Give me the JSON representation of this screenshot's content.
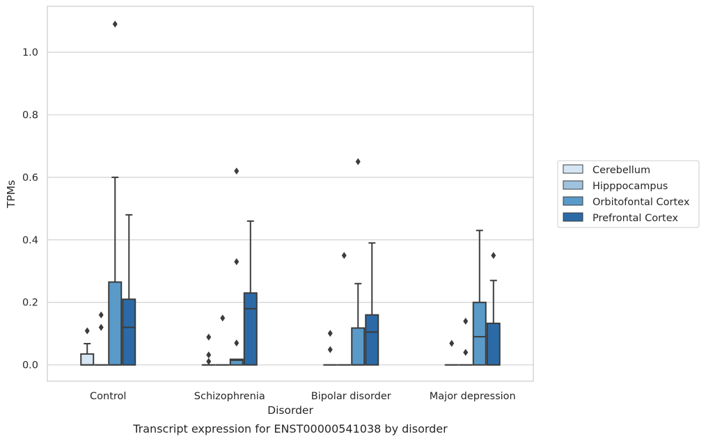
{
  "chart_data": {
    "type": "box",
    "caption": "Transcript expression for ENST00000541038 by disorder",
    "xlabel": "Disorder",
    "ylabel": "TPMs",
    "ylim": [
      -0.052,
      1.147
    ],
    "yticks": [
      "0.0",
      "0.2",
      "0.4",
      "0.6",
      "0.8",
      "1.0"
    ],
    "grid": "horizontal",
    "legend_position": "right-outside",
    "categories": [
      "Control",
      "Schizophrenia",
      "Bipolar disorder",
      "Major depression"
    ],
    "series": [
      {
        "name": "Cerebellum",
        "color": "#d5e5f3",
        "boxes": [
          {
            "q1": 0.0,
            "median": 0.0,
            "q3": 0.035,
            "whisker_low": 0.0,
            "whisker_high": 0.068,
            "outliers": [
              0.109
            ]
          },
          {
            "q1": 0.0,
            "median": 0.0,
            "q3": 0.0,
            "whisker_low": 0.0,
            "whisker_high": 0.0,
            "outliers": [
              0.011,
              0.032,
              0.089
            ]
          },
          {
            "q1": 0.0,
            "median": 0.0,
            "q3": 0.0,
            "whisker_low": 0.0,
            "whisker_high": 0.0,
            "outliers": [
              0.049,
              0.101
            ]
          },
          {
            "q1": 0.0,
            "median": 0.0,
            "q3": 0.0,
            "whisker_low": 0.0,
            "whisker_high": 0.0,
            "outliers": [
              0.069
            ]
          }
        ]
      },
      {
        "name": "Hipppocampus",
        "color": "#9fc3de",
        "boxes": [
          {
            "q1": 0.0,
            "median": 0.0,
            "q3": 0.0,
            "whisker_low": 0.0,
            "whisker_high": 0.0,
            "outliers": [
              0.12,
              0.16
            ]
          },
          {
            "q1": 0.0,
            "median": 0.0,
            "q3": 0.0,
            "whisker_low": 0.0,
            "whisker_high": 0.0,
            "outliers": [
              0.15
            ]
          },
          {
            "q1": 0.0,
            "median": 0.0,
            "q3": 0.0,
            "whisker_low": 0.0,
            "whisker_high": 0.0,
            "outliers": [
              0.35
            ]
          },
          {
            "q1": 0.0,
            "median": 0.0,
            "q3": 0.0,
            "whisker_low": 0.0,
            "whisker_high": 0.0,
            "outliers": [
              0.04,
              0.14
            ]
          }
        ]
      },
      {
        "name": "Orbitofontal Cortex",
        "color": "#5a9ac9",
        "boxes": [
          {
            "q1": 0.0,
            "median": 0.0,
            "q3": 0.265,
            "whisker_low": 0.0,
            "whisker_high": 0.6,
            "outliers": [
              1.09
            ]
          },
          {
            "q1": 0.0,
            "median": 0.015,
            "q3": 0.018,
            "whisker_low": 0.0,
            "whisker_high": 0.018,
            "outliers": [
              0.07,
              0.33,
              0.62
            ]
          },
          {
            "q1": 0.0,
            "median": 0.0,
            "q3": 0.118,
            "whisker_low": 0.0,
            "whisker_high": 0.26,
            "outliers": [
              0.65
            ]
          },
          {
            "q1": 0.0,
            "median": 0.09,
            "q3": 0.2,
            "whisker_low": 0.0,
            "whisker_high": 0.43,
            "outliers": []
          }
        ]
      },
      {
        "name": "Prefrontal Cortex",
        "color": "#2b6aa6",
        "boxes": [
          {
            "q1": 0.0,
            "median": 0.12,
            "q3": 0.21,
            "whisker_low": 0.0,
            "whisker_high": 0.48,
            "outliers": []
          },
          {
            "q1": 0.0,
            "median": 0.18,
            "q3": 0.23,
            "whisker_low": 0.0,
            "whisker_high": 0.46,
            "outliers": []
          },
          {
            "q1": 0.0,
            "median": 0.105,
            "q3": 0.16,
            "whisker_low": 0.0,
            "whisker_high": 0.39,
            "outliers": []
          },
          {
            "q1": 0.0,
            "median": 0.0,
            "q3": 0.133,
            "whisker_low": 0.0,
            "whisker_high": 0.27,
            "outliers": [
              0.35
            ]
          }
        ]
      }
    ]
  }
}
